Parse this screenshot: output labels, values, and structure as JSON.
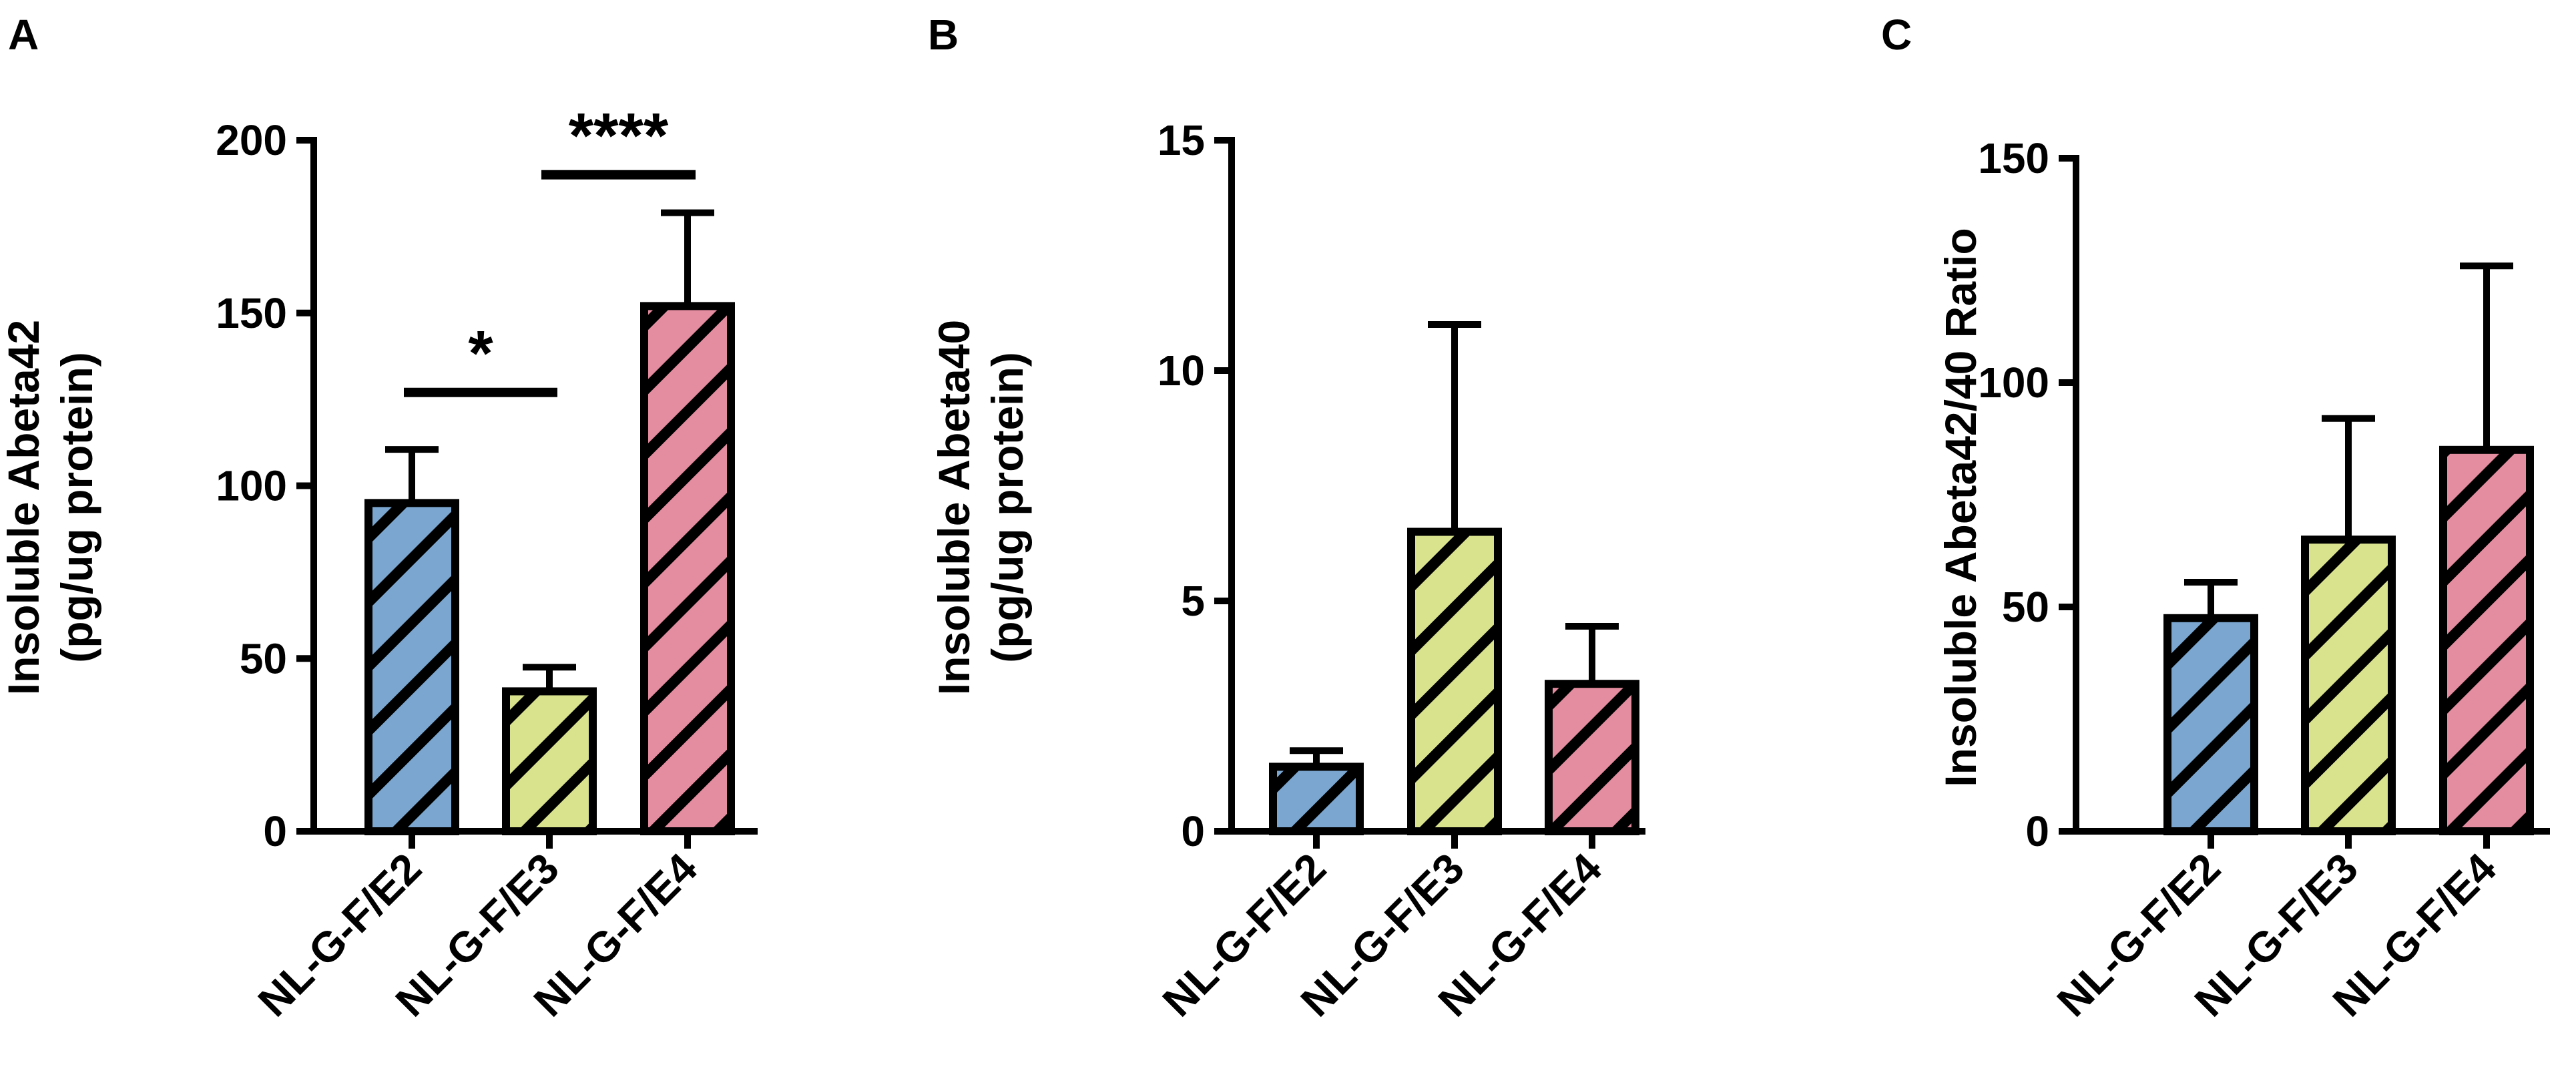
{
  "colors": {
    "e2": "#7aa6cf",
    "e3": "#d9e38e",
    "e4": "#e48ca0",
    "outline": "#000000"
  },
  "chart_data": [
    {
      "panel": "A",
      "type": "bar",
      "categories": [
        "NL-G-F/E2",
        "NL-G-F/E3",
        "NL-G-F/E4"
      ],
      "values": [
        95,
        40.5,
        152
      ],
      "errors": [
        15.5,
        7,
        27
      ],
      "ylabel_lines": [
        "Insoluble Abeta42",
        "(pg/ug protein)"
      ],
      "ylim": [
        0,
        200
      ],
      "yticks": [
        "0",
        "50",
        "100",
        "150",
        "200"
      ],
      "significance": [
        {
          "from": 0,
          "to": 1,
          "label": "*",
          "y": 127
        },
        {
          "from": 1,
          "to": 2,
          "label": "****",
          "y": 190
        }
      ]
    },
    {
      "panel": "B",
      "type": "bar",
      "categories": [
        "NL-G-F/E2",
        "NL-G-F/E3",
        "NL-G-F/E4"
      ],
      "values": [
        1.4,
        6.5,
        3.2
      ],
      "errors": [
        0.35,
        4.5,
        1.25
      ],
      "ylabel_lines": [
        "Insoluble Abeta40",
        "(pg/ug protein)"
      ],
      "ylim": [
        0,
        15
      ],
      "yticks": [
        "0",
        "5",
        "10",
        "15"
      ],
      "significance": []
    },
    {
      "panel": "C",
      "type": "bar",
      "categories": [
        "NL-G-F/E2",
        "NL-G-F/E3",
        "NL-G-F/E4"
      ],
      "values": [
        47.5,
        65,
        85
      ],
      "errors": [
        8,
        27,
        41
      ],
      "ylabel_lines": [
        "Insoluble Abeta42/40 Ratio"
      ],
      "ylim": [
        0,
        150
      ],
      "yticks": [
        "0",
        "50",
        "100",
        "150"
      ],
      "significance": []
    }
  ]
}
